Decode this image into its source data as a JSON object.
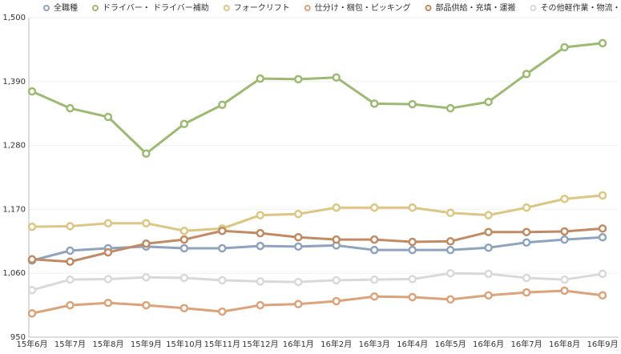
{
  "chart_data": {
    "type": "line",
    "categories": [
      "15年6月",
      "15年7月",
      "15年8月",
      "15年9月",
      "15年10月",
      "15年11月",
      "15年12月",
      "16年1月",
      "16年2月",
      "16年3月",
      "16年4月",
      "16年5月",
      "16年6月",
      "16年7月",
      "16年8月",
      "16年9月"
    ],
    "series": [
      {
        "name": "全職種",
        "color": "#8fa3bf",
        "values": [
          1082,
          1099,
          1103,
          1106,
          1103,
          1103,
          1107,
          1106,
          1108,
          1100,
          1100,
          1100,
          1104,
          1113,
          1118,
          1122
        ]
      },
      {
        "name": "ドライバー・ ドライバー補助",
        "color": "#9cba72",
        "values": [
          1373,
          1344,
          1329,
          1266,
          1317,
          1350,
          1395,
          1394,
          1397,
          1352,
          1351,
          1344,
          1355,
          1403,
          1449,
          1456
        ]
      },
      {
        "name": "フォークリフト",
        "color": "#dcc682",
        "values": [
          1140,
          1141,
          1146,
          1146,
          1133,
          1137,
          1160,
          1162,
          1173,
          1173,
          1173,
          1164,
          1160,
          1173,
          1188,
          1194
        ]
      },
      {
        "name": "仕分け・梱包・ピッキング",
        "color": "#dca27a",
        "values": [
          991,
          1005,
          1009,
          1005,
          1000,
          994,
          1005,
          1007,
          1012,
          1020,
          1019,
          1015,
          1022,
          1027,
          1030,
          1022
        ]
      },
      {
        "name": "部品供給・充填・運搬",
        "color": "#c28a62",
        "values": [
          1084,
          1080,
          1096,
          1111,
          1118,
          1133,
          1129,
          1122,
          1118,
          1118,
          1114,
          1115,
          1131,
          1131,
          1132,
          1137
        ]
      },
      {
        "name": "その他軽作業・物流・配送",
        "color": "#d9d9d9",
        "values": [
          1031,
          1049,
          1050,
          1053,
          1052,
          1048,
          1046,
          1045,
          1048,
          1049,
          1050,
          1060,
          1059,
          1052,
          1049,
          1059
        ]
      }
    ],
    "ylim": [
      950,
      1500
    ],
    "yticks": [
      950,
      {
        "value": 1060,
        "label": "1,060"
      },
      {
        "value": 1170,
        "label": "1,170"
      },
      {
        "value": 1280,
        "label": "1,280"
      },
      {
        "value": 1390,
        "label": "1,390"
      },
      {
        "value": 1500,
        "label": "1,500"
      }
    ],
    "grid": true
  }
}
